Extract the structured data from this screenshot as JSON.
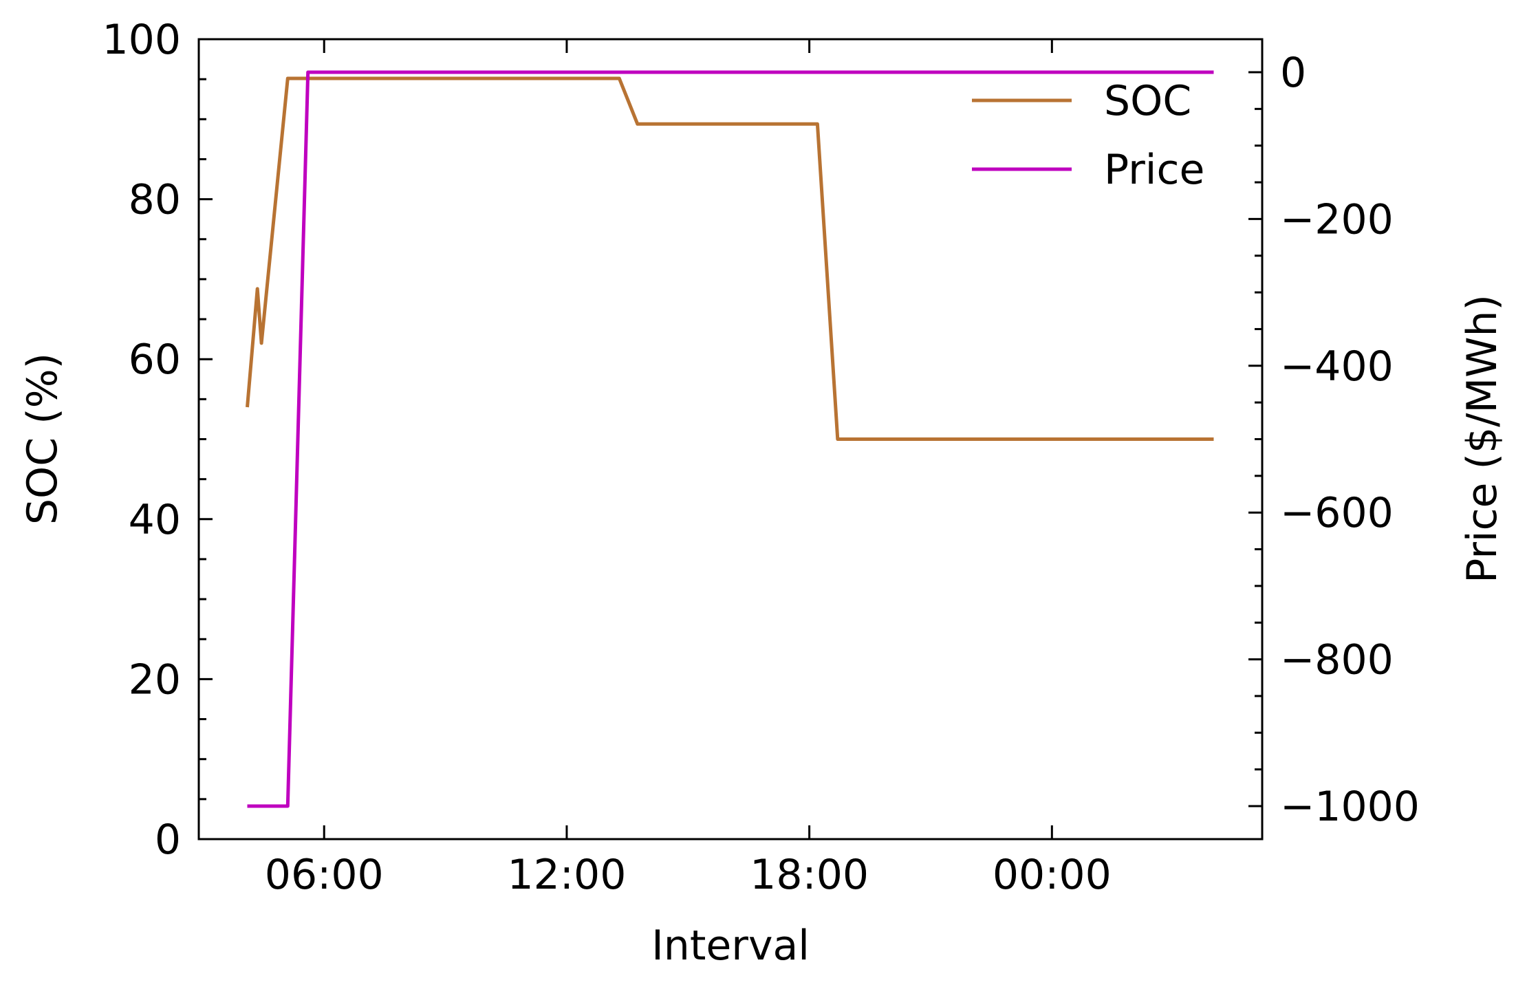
{
  "chart_data": {
    "type": "line",
    "xlabel": "Interval",
    "ylabel_left": "SOC (%)",
    "ylabel_right": "Price ($/MWh)",
    "x_ticks": [
      "06:00",
      "12:00",
      "18:00",
      "00:00"
    ],
    "x_tick_hours": [
      6,
      12,
      18,
      24
    ],
    "xlim_hours": [
      2.9,
      29.2
    ],
    "ylim_left": [
      0,
      100
    ],
    "ylim_right": [
      -1045,
      45
    ],
    "y_ticks_left": [
      "0",
      "20",
      "40",
      "60",
      "80",
      "100"
    ],
    "y_ticks_right": [
      "0",
      "−200",
      "−400",
      "−600",
      "−800",
      "−1000"
    ],
    "legend_position": "top-right",
    "grid": false,
    "series": [
      {
        "name": "SOC",
        "axis": "left",
        "color": "#b87333",
        "points": [
          [
            4.1,
            54
          ],
          [
            4.35,
            68.8
          ],
          [
            4.45,
            62
          ],
          [
            5.1,
            95.1
          ],
          [
            12.1,
            95.1
          ],
          [
            13.3,
            95.1
          ],
          [
            13.75,
            89.4
          ],
          [
            18.2,
            89.4
          ],
          [
            18.7,
            50
          ],
          [
            28.0,
            50
          ]
        ]
      },
      {
        "name": "Price",
        "axis": "right",
        "color": "#bf00bf",
        "points": [
          [
            4.1,
            -1000
          ],
          [
            5.1,
            -1000
          ],
          [
            5.6,
            0
          ],
          [
            28.0,
            0
          ]
        ]
      }
    ]
  }
}
